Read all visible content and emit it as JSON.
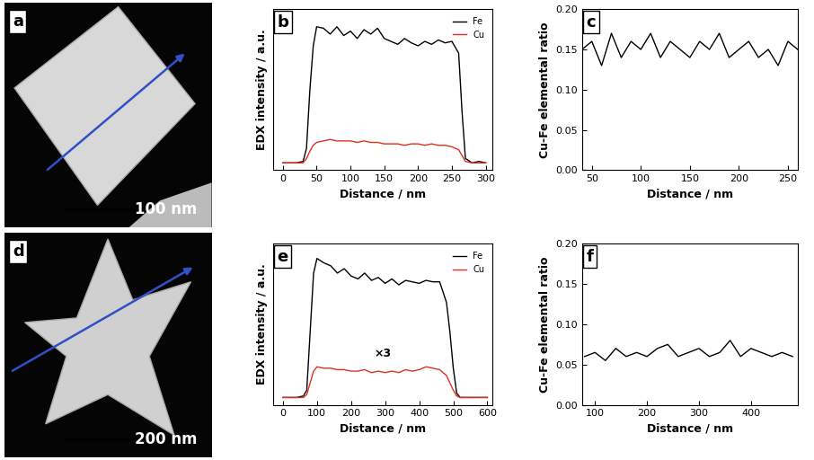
{
  "images": [
    {
      "label": "a",
      "scale_bar": "100 nm"
    },
    {
      "label": "d",
      "scale_bar": "200 nm"
    }
  ],
  "chart_data": [
    {
      "type": "line",
      "title": "b",
      "x_label": "Distance / nm",
      "y_label": "EDX intensity / a.u.",
      "x": [
        0,
        10,
        20,
        30,
        35,
        40,
        45,
        50,
        60,
        70,
        80,
        90,
        100,
        110,
        120,
        130,
        140,
        150,
        160,
        170,
        180,
        190,
        200,
        210,
        220,
        230,
        240,
        250,
        260,
        265,
        270,
        280,
        290,
        300
      ],
      "series": [
        {
          "name": "Fe",
          "color": "#000000",
          "values": [
            0.05,
            0.05,
            0.05,
            0.06,
            0.15,
            0.55,
            0.85,
            0.98,
            0.97,
            0.93,
            0.98,
            0.92,
            0.95,
            0.9,
            0.96,
            0.93,
            0.97,
            0.9,
            0.88,
            0.86,
            0.9,
            0.87,
            0.85,
            0.88,
            0.86,
            0.89,
            0.87,
            0.88,
            0.8,
            0.4,
            0.08,
            0.05,
            0.06,
            0.05
          ]
        },
        {
          "name": "Cu",
          "color": "#e0301e",
          "values": [
            0.05,
            0.05,
            0.05,
            0.05,
            0.08,
            0.13,
            0.17,
            0.19,
            0.2,
            0.21,
            0.2,
            0.2,
            0.2,
            0.19,
            0.2,
            0.19,
            0.19,
            0.18,
            0.18,
            0.18,
            0.17,
            0.18,
            0.18,
            0.17,
            0.18,
            0.17,
            0.17,
            0.16,
            0.14,
            0.1,
            0.06,
            0.05,
            0.05,
            0.05
          ]
        }
      ],
      "xlim": [
        -15,
        310
      ],
      "xticks": [
        0,
        50,
        100,
        150,
        200,
        250,
        300
      ],
      "ylim": [
        0,
        1.1
      ],
      "tick_labels": "x",
      "legend": "upper right"
    },
    {
      "type": "line",
      "title": "c",
      "x_label": "Distance / nm",
      "y_label": "Cu-Fe elemental ratio",
      "x": [
        40,
        50,
        60,
        70,
        80,
        90,
        100,
        110,
        120,
        130,
        140,
        150,
        160,
        170,
        180,
        190,
        200,
        210,
        220,
        230,
        240,
        250,
        260
      ],
      "values": [
        0.15,
        0.16,
        0.13,
        0.17,
        0.14,
        0.16,
        0.15,
        0.17,
        0.14,
        0.16,
        0.15,
        0.14,
        0.16,
        0.15,
        0.17,
        0.14,
        0.15,
        0.16,
        0.14,
        0.15,
        0.13,
        0.16,
        0.15
      ],
      "color": "#000000",
      "xlim": [
        40,
        260
      ],
      "xticks": [
        50,
        100,
        150,
        200,
        250
      ],
      "ylim": [
        0,
        0.2
      ],
      "yticks": [
        {
          "value": 0,
          "label": "0.00"
        },
        {
          "value": 0.05,
          "label": "0.05"
        },
        {
          "value": 0.1,
          "label": "0.10"
        },
        {
          "value": 0.15,
          "label": "0.15"
        },
        {
          "value": 0.2,
          "label": "0.20"
        }
      ]
    },
    {
      "type": "line",
      "title": "e",
      "x_label": "Distance / nm",
      "y_label": "EDX intensity / a.u.",
      "annotations": [
        "×3"
      ],
      "x": [
        0,
        20,
        40,
        60,
        70,
        80,
        90,
        100,
        120,
        140,
        160,
        180,
        200,
        220,
        240,
        260,
        280,
        300,
        320,
        340,
        360,
        380,
        400,
        420,
        440,
        460,
        480,
        490,
        500,
        510,
        520,
        540,
        560,
        580,
        600
      ],
      "series": [
        {
          "name": "Fe",
          "color": "#000000",
          "values": [
            0.05,
            0.05,
            0.05,
            0.06,
            0.1,
            0.5,
            0.9,
            1.0,
            0.97,
            0.95,
            0.9,
            0.93,
            0.88,
            0.86,
            0.9,
            0.85,
            0.87,
            0.83,
            0.86,
            0.82,
            0.85,
            0.84,
            0.83,
            0.85,
            0.84,
            0.84,
            0.7,
            0.5,
            0.25,
            0.08,
            0.05,
            0.05,
            0.05,
            0.05,
            0.05
          ]
        },
        {
          "name": "Cu",
          "color": "#e0301e",
          "values": [
            0.05,
            0.05,
            0.05,
            0.05,
            0.07,
            0.15,
            0.23,
            0.26,
            0.25,
            0.25,
            0.24,
            0.24,
            0.23,
            0.23,
            0.24,
            0.22,
            0.23,
            0.22,
            0.23,
            0.22,
            0.24,
            0.23,
            0.24,
            0.26,
            0.25,
            0.24,
            0.2,
            0.15,
            0.1,
            0.06,
            0.05,
            0.05,
            0.05,
            0.05,
            0.05
          ]
        }
      ],
      "xlim": [
        -30,
        615
      ],
      "xticks": [
        0,
        100,
        200,
        300,
        400,
        500,
        600
      ],
      "ylim": [
        0,
        1.1
      ],
      "tick_labels": "x",
      "legend": "upper right"
    },
    {
      "type": "line",
      "title": "f",
      "x_label": "Distance / nm",
      "y_label": "Cu-Fe elemental ratio",
      "x": [
        80,
        100,
        120,
        140,
        160,
        180,
        200,
        220,
        240,
        260,
        280,
        300,
        320,
        340,
        360,
        380,
        400,
        420,
        440,
        460,
        480
      ],
      "values": [
        0.06,
        0.065,
        0.055,
        0.07,
        0.06,
        0.065,
        0.06,
        0.07,
        0.075,
        0.06,
        0.065,
        0.07,
        0.06,
        0.065,
        0.08,
        0.06,
        0.07,
        0.065,
        0.06,
        0.065,
        0.06
      ],
      "color": "#000000",
      "xlim": [
        75,
        490
      ],
      "xticks": [
        100,
        200,
        300,
        400
      ],
      "ylim": [
        0,
        0.2
      ],
      "yticks": [
        {
          "value": 0,
          "label": "0.00"
        },
        {
          "value": 0.05,
          "label": "0.05"
        },
        {
          "value": 0.1,
          "label": "0.10"
        },
        {
          "value": 0.15,
          "label": "0.15"
        },
        {
          "value": 0.2,
          "label": "0.20"
        }
      ]
    }
  ]
}
